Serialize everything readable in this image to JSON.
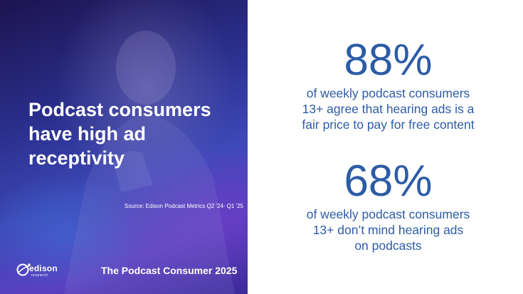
{
  "left_panel": {
    "headline": "Podcast consumers have high ad receptivity",
    "source": "Source: Edison Podcast Metrics Q2 '24- Q1 '25",
    "footer_title": "The Podcast Consumer 2025",
    "logo": {
      "word": "edison",
      "sub": "research"
    }
  },
  "stats": [
    {
      "value": "88%",
      "text": "of weekly podcast consumers\n13+ agree that hearing ads is a\nfair price to pay for free content"
    },
    {
      "value": "68%",
      "text": "of weekly podcast consumers\n13+ don’t mind hearing ads\non podcasts"
    }
  ],
  "colors": {
    "stat_blue": "#2d5ca6",
    "panel_dark": "#1d1450",
    "panel_mid": "#3e49b8",
    "panel_violet": "#5a3fc0"
  }
}
